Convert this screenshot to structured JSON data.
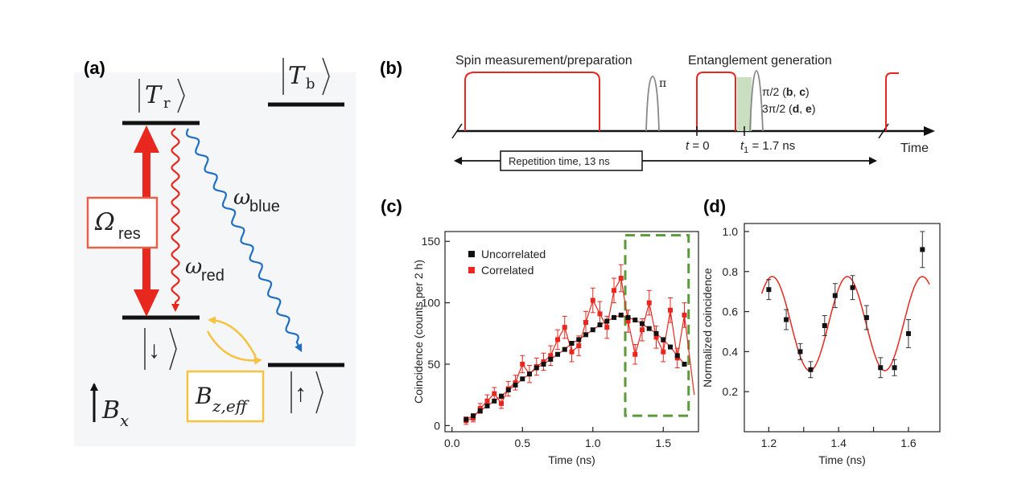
{
  "panel_labels": {
    "a": "(a)",
    "b": "(b)",
    "c": "(c)",
    "d": "(d)"
  },
  "panel_a": {
    "state_Tr": "T",
    "state_Tr_sub": "r",
    "state_Tb": "T",
    "state_Tb_sub": "b",
    "state_down": "↓",
    "state_up": "↑",
    "omega_res": "Ω",
    "omega_res_sub": "res",
    "omega_red": "ω",
    "omega_red_sub": "red",
    "omega_blue": "ω",
    "omega_blue_sub": "blue",
    "bz_eff": "B",
    "bz_eff_sub": "z,eff",
    "bx": "B",
    "bx_sub": "x",
    "colors": {
      "red": "#e8281f",
      "blue": "#1f6fc4",
      "yellow": "#f5c242",
      "box_red": "#e8604a"
    }
  },
  "panel_b": {
    "spin_label": "Spin measurement/preparation",
    "ent_label": "Entanglement generation",
    "pi_label": "π",
    "pi2_label": "π/2 (b, c)",
    "pi2_prefix": "π/2 (",
    "pi2_b": "b",
    "pi2_sep": ", ",
    "pi2_c": "c",
    "pi2_suffix": ")",
    "pi32_prefix": "3π/2 (",
    "pi32_d": "d",
    "pi32_e": "e",
    "pi32_suffix": ")",
    "t0_label": "t",
    "t0_value": " = 0",
    "t1_label": "t",
    "t1_sub": "1",
    "t1_value": " = 1.7 ns",
    "time_label": "Time",
    "rep_label": "Repetition time, 13 ns"
  },
  "chart_data": [
    {
      "panel": "c",
      "type": "scatter",
      "xlabel": "Time (ns)",
      "ylabel": "Coincidence (counts per 2 h)",
      "xlim": [
        -0.05,
        1.75
      ],
      "ylim": [
        -5,
        158
      ],
      "xticks": [
        0.0,
        0.5,
        1.0,
        1.5
      ],
      "xticklabels": [
        "0.0",
        "0.5",
        "1.0",
        "1.5"
      ],
      "yticks": [
        0,
        50,
        100,
        150
      ],
      "yticklabels": [
        "0",
        "50",
        "100",
        "150"
      ],
      "legend": [
        "Uncorrelated",
        "Correlated"
      ],
      "legend_position": "top-left",
      "highlight_box": {
        "x": [
          1.23,
          1.68
        ],
        "y": [
          8,
          155
        ],
        "color": "#5a9a3a"
      },
      "series": [
        {
          "name": "Uncorrelated",
          "color": "#111111",
          "x": [
            0.1,
            0.15,
            0.2,
            0.25,
            0.3,
            0.35,
            0.4,
            0.45,
            0.5,
            0.55,
            0.6,
            0.65,
            0.7,
            0.75,
            0.8,
            0.85,
            0.9,
            0.95,
            1.0,
            1.05,
            1.1,
            1.15,
            1.2,
            1.25,
            1.3,
            1.35,
            1.4,
            1.45,
            1.5,
            1.55,
            1.6,
            1.65
          ],
          "values": [
            5,
            8,
            12,
            16,
            20,
            24,
            29,
            33,
            38,
            42,
            47,
            50,
            54,
            58,
            62,
            67,
            70,
            74,
            78,
            82,
            85,
            88,
            90,
            88,
            86,
            83,
            79,
            75,
            70,
            64,
            57,
            50
          ]
        },
        {
          "name": "Correlated",
          "color": "#e8281f",
          "x": [
            0.1,
            0.15,
            0.2,
            0.25,
            0.3,
            0.35,
            0.4,
            0.45,
            0.5,
            0.55,
            0.6,
            0.65,
            0.7,
            0.75,
            0.8,
            0.85,
            0.9,
            0.95,
            1.0,
            1.05,
            1.1,
            1.15,
            1.2,
            1.25,
            1.3,
            1.35,
            1.4,
            1.45,
            1.5,
            1.55,
            1.6,
            1.65
          ],
          "values": [
            4,
            6,
            14,
            20,
            26,
            18,
            30,
            35,
            50,
            42,
            48,
            52,
            57,
            70,
            80,
            60,
            65,
            84,
            102,
            91,
            80,
            110,
            120,
            85,
            58,
            78,
            100,
            72,
            60,
            94,
            55,
            90
          ],
          "errors": [
            3,
            3,
            4,
            5,
            5,
            4,
            6,
            6,
            7,
            7,
            7,
            7,
            8,
            8,
            9,
            8,
            8,
            9,
            10,
            10,
            9,
            10,
            11,
            9,
            8,
            9,
            10,
            9,
            8,
            10,
            8,
            10
          ]
        }
      ]
    },
    {
      "panel": "d",
      "type": "scatter",
      "xlabel": "Time (ns)",
      "ylabel": "Normalized coincidence",
      "xlim": [
        1.13,
        1.69
      ],
      "ylim": [
        0.0,
        1.04
      ],
      "xticks": [
        1.2,
        1.3,
        1.4,
        1.5,
        1.6
      ],
      "xticklabels": [
        "1.2",
        "1.4",
        "1.6"
      ],
      "xticklabel_values": [
        1.2,
        1.4,
        1.6
      ],
      "yticks": [
        0.2,
        0.4,
        0.6,
        0.8,
        1.0
      ],
      "yticklabels": [
        "0.2",
        "0.4",
        "0.6",
        "0.8",
        "1.0"
      ],
      "series": [
        {
          "name": "data",
          "color": "#111111",
          "x": [
            1.2,
            1.25,
            1.29,
            1.32,
            1.36,
            1.39,
            1.44,
            1.48,
            1.52,
            1.56,
            1.6,
            1.64
          ],
          "values": [
            0.71,
            0.56,
            0.4,
            0.31,
            0.53,
            0.68,
            0.72,
            0.57,
            0.32,
            0.32,
            0.49,
            0.91
          ],
          "errors": [
            0.05,
            0.05,
            0.04,
            0.04,
            0.05,
            0.06,
            0.06,
            0.06,
            0.05,
            0.04,
            0.07,
            0.09
          ]
        },
        {
          "name": "fit",
          "color": "#e8281f",
          "fit": {
            "offset": 0.54,
            "amplitude": 0.235,
            "period": 0.215,
            "peak": 1.425
          },
          "x_range": [
            1.18,
            1.66
          ]
        }
      ]
    }
  ]
}
